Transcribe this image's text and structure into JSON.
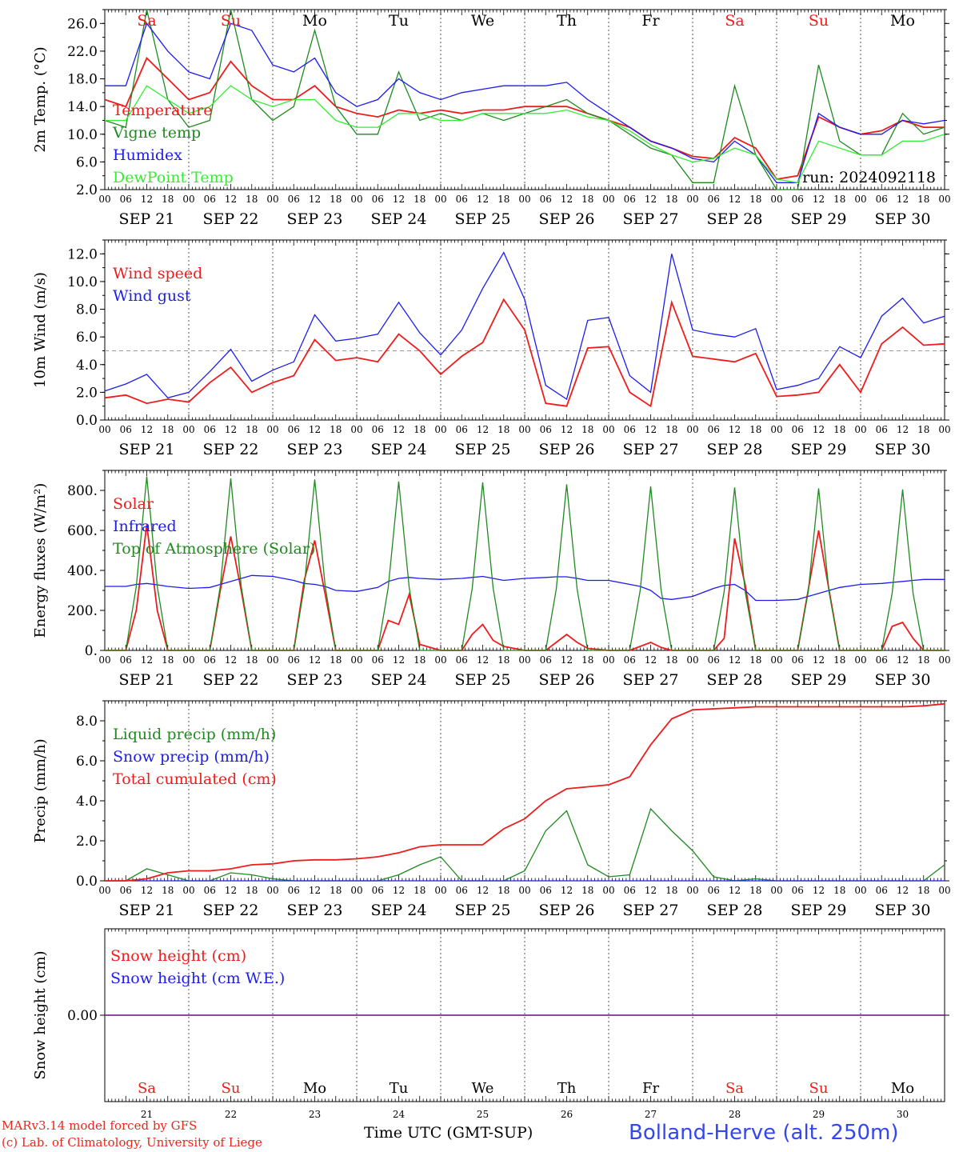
{
  "colors": {
    "red": "#ee1c1c",
    "green": "#1f8a1f",
    "blue": "#1c1cf0",
    "lime": "#33ee33",
    "purple": "#7a2a9a",
    "grid": "#555555",
    "ref": "#999999"
  },
  "footer": {
    "credit_line1": "MARv3.14 model forced by GFS",
    "credit_line2": "(c) Lab. of Climatology, University of Liege",
    "xaxis_title": "Time UTC (GMT-SUP)",
    "station": "Bolland-Herve (alt. 250m)"
  },
  "chart_data": [
    {
      "type": "line",
      "ylabel": "2m Temp. (°C)",
      "ylim": [
        2,
        28
      ],
      "yticks": [
        "2.0",
        "6.0",
        "10.0",
        "14.0",
        "18.0",
        "22.0",
        "26.0"
      ],
      "run_label": "run: 2024092118",
      "days_top": [
        "Sa",
        "Su",
        "Mo",
        "Tu",
        "We",
        "Th",
        "Fr",
        "Sa",
        "Su",
        "Mo"
      ],
      "day_colors": [
        "red",
        "red",
        "black",
        "black",
        "black",
        "black",
        "black",
        "red",
        "red",
        "black"
      ],
      "date_labels": [
        "SEP 21",
        "SEP 22",
        "SEP 23",
        "SEP 24",
        "SEP 25",
        "SEP 26",
        "SEP 27",
        "SEP 28",
        "SEP 29",
        "SEP 30"
      ],
      "hour_labels": [
        "00",
        "06",
        "12",
        "18"
      ],
      "x": [
        0,
        6,
        12,
        18,
        24,
        30,
        36,
        42,
        48,
        54,
        60,
        66,
        72,
        78,
        84,
        90,
        96,
        102,
        108,
        114,
        120,
        126,
        132,
        138,
        144,
        150,
        156,
        162,
        168,
        174,
        180,
        186,
        192,
        198,
        204,
        210,
        216,
        222,
        228,
        234,
        240
      ],
      "series": [
        {
          "name": "Temperature",
          "color": "red",
          "values": [
            15,
            14,
            21,
            18,
            15,
            16,
            20.5,
            17,
            15,
            15,
            17,
            14,
            13,
            12.5,
            13.5,
            13,
            13.5,
            13,
            13.5,
            13.5,
            14,
            14,
            14,
            13,
            12,
            11,
            9,
            8,
            6.8,
            6.5,
            9.5,
            8,
            3.5,
            4,
            12.5,
            11,
            10,
            10.5,
            12,
            11,
            11
          ]
        },
        {
          "name": "Vigne temp",
          "color": "green",
          "values": [
            12,
            11,
            28,
            15,
            11,
            12,
            28,
            15,
            12,
            14,
            25,
            14,
            10,
            10,
            19,
            12,
            13,
            12,
            13,
            12,
            13,
            14,
            15,
            13,
            12,
            10,
            8,
            7,
            3,
            3,
            17,
            7,
            0,
            1,
            20,
            9,
            7,
            7,
            13,
            10,
            11
          ]
        },
        {
          "name": "Humidex",
          "color": "blue",
          "values": [
            17,
            17,
            26,
            22,
            19,
            18,
            26,
            25,
            20,
            19,
            21,
            16,
            14,
            15,
            18,
            16,
            15,
            16,
            16.5,
            17,
            17,
            17,
            17.5,
            15,
            13,
            11,
            9,
            8,
            6.5,
            6,
            9,
            7,
            3,
            3,
            13,
            11,
            10,
            10,
            12,
            11.5,
            12
          ]
        },
        {
          "name": "DewPoint Temp",
          "color": "lime",
          "values": [
            12,
            12,
            17,
            15,
            13,
            14,
            17,
            15,
            14,
            15,
            15,
            12,
            11,
            11,
            13,
            13,
            12,
            12,
            13,
            13,
            13,
            13,
            13.5,
            12.5,
            12,
            10.5,
            8.5,
            7,
            6,
            6.5,
            8,
            7,
            3.5,
            3,
            9,
            8,
            7,
            7,
            9,
            9,
            10
          ]
        }
      ]
    },
    {
      "type": "line",
      "ylabel": "10m Wind (m/s)",
      "ylim": [
        0,
        13
      ],
      "yticks": [
        "0.0",
        "2.0",
        "4.0",
        "6.0",
        "8.0",
        "10.0",
        "12.0"
      ],
      "reference_line": 5,
      "x": [
        0,
        6,
        12,
        18,
        24,
        30,
        36,
        42,
        48,
        54,
        60,
        66,
        72,
        78,
        84,
        90,
        96,
        102,
        108,
        114,
        120,
        126,
        132,
        138,
        144,
        150,
        156,
        162,
        168,
        174,
        180,
        186,
        192,
        198,
        204,
        210,
        216,
        222,
        228,
        234,
        240
      ],
      "series": [
        {
          "name": "Wind speed",
          "color": "red",
          "values": [
            1.6,
            1.8,
            1.2,
            1.5,
            1.3,
            2.7,
            3.8,
            2.0,
            2.7,
            3.2,
            5.8,
            4.3,
            4.5,
            4.2,
            6.2,
            5.0,
            3.3,
            4.6,
            5.6,
            8.7,
            6.5,
            1.2,
            1.0,
            5.2,
            5.3,
            2.0,
            1.0,
            8.5,
            4.6,
            4.4,
            4.2,
            4.8,
            1.7,
            1.8,
            2.0,
            4.0,
            2.0,
            5.5,
            6.7,
            5.4,
            5.5
          ]
        },
        {
          "name": "Wind gust",
          "color": "blue",
          "values": [
            2.1,
            2.6,
            3.3,
            1.6,
            2.0,
            3.5,
            5.1,
            2.8,
            3.6,
            4.2,
            7.6,
            5.7,
            5.9,
            6.2,
            8.5,
            6.3,
            4.7,
            6.5,
            9.5,
            12.1,
            8.7,
            2.5,
            1.5,
            7.2,
            7.4,
            3.2,
            2.0,
            12.0,
            6.5,
            6.2,
            6.0,
            6.6,
            2.2,
            2.5,
            3.0,
            5.3,
            4.5,
            7.5,
            8.8,
            7.0,
            7.5
          ]
        }
      ]
    },
    {
      "type": "line",
      "ylabel": "Energy fluxes (W/m²)",
      "ylim": [
        0,
        900
      ],
      "yticks": [
        "0.",
        "200.",
        "400.",
        "600.",
        "800."
      ],
      "x": [
        0,
        6,
        9,
        12,
        15,
        18,
        24,
        30,
        33,
        36,
        39,
        42,
        48,
        54,
        57,
        60,
        63,
        66,
        72,
        78,
        81,
        84,
        87,
        90,
        96,
        102,
        105,
        108,
        111,
        114,
        120,
        126,
        129,
        132,
        135,
        138,
        144,
        150,
        153,
        156,
        159,
        162,
        168,
        174,
        177,
        180,
        183,
        186,
        192,
        198,
        201,
        204,
        207,
        210,
        216,
        222,
        225,
        228,
        231,
        234,
        240
      ],
      "series": [
        {
          "name": "Solar",
          "color": "red",
          "values": [
            0,
            0,
            200,
            630,
            200,
            0,
            0,
            0,
            300,
            570,
            300,
            0,
            0,
            0,
            350,
            550,
            280,
            0,
            0,
            0,
            150,
            130,
            280,
            30,
            0,
            0,
            80,
            130,
            50,
            20,
            0,
            0,
            40,
            80,
            40,
            10,
            0,
            0,
            20,
            40,
            15,
            0,
            0,
            0,
            60,
            560,
            330,
            0,
            0,
            0,
            300,
            600,
            300,
            0,
            0,
            0,
            120,
            140,
            60,
            0,
            0
          ]
        },
        {
          "name": "Infrared",
          "color": "blue",
          "values": [
            320,
            320,
            330,
            335,
            328,
            320,
            310,
            315,
            330,
            345,
            360,
            375,
            370,
            350,
            335,
            330,
            320,
            300,
            295,
            315,
            345,
            360,
            365,
            360,
            355,
            360,
            365,
            370,
            360,
            350,
            360,
            365,
            368,
            368,
            360,
            350,
            350,
            330,
            320,
            300,
            260,
            255,
            270,
            310,
            325,
            330,
            300,
            250,
            250,
            255,
            270,
            285,
            300,
            315,
            330,
            335,
            340,
            345,
            350,
            355,
            355
          ]
        },
        {
          "name": "Top of Atmosphere (Solar)",
          "color": "green",
          "values": [
            0,
            0,
            320,
            870,
            320,
            0,
            0,
            0,
            320,
            860,
            320,
            0,
            0,
            0,
            320,
            855,
            320,
            0,
            0,
            0,
            315,
            845,
            315,
            0,
            0,
            0,
            310,
            840,
            310,
            0,
            0,
            0,
            305,
            830,
            305,
            0,
            0,
            0,
            300,
            820,
            300,
            0,
            0,
            0,
            295,
            815,
            295,
            0,
            0,
            0,
            290,
            810,
            290,
            0,
            0,
            0,
            285,
            805,
            285,
            0,
            0
          ]
        }
      ]
    },
    {
      "type": "line",
      "ylabel": "Precip (mm/h)",
      "ylim": [
        0,
        9
      ],
      "yticks": [
        "0.0",
        "2.0",
        "4.0",
        "6.0",
        "8.0"
      ],
      "x": [
        0,
        6,
        12,
        18,
        24,
        30,
        36,
        42,
        48,
        54,
        60,
        66,
        72,
        78,
        84,
        90,
        96,
        102,
        108,
        114,
        120,
        126,
        132,
        138,
        144,
        150,
        156,
        162,
        168,
        174,
        180,
        186,
        192,
        198,
        204,
        210,
        216,
        222,
        228,
        234,
        240
      ],
      "series": [
        {
          "name": "Liquid precip (mm/h)",
          "color": "green",
          "values": [
            0,
            0,
            0.6,
            0.3,
            0,
            0,
            0.4,
            0.3,
            0.1,
            0,
            0,
            0,
            0,
            0,
            0.3,
            0.8,
            1.2,
            0,
            0,
            0,
            0.5,
            2.5,
            3.5,
            0.8,
            0.2,
            0.3,
            3.6,
            2.5,
            1.5,
            0.2,
            0,
            0.1,
            0,
            0,
            0,
            0,
            0,
            0,
            0,
            0,
            0.8
          ]
        },
        {
          "name": "Snow precip (mm/h)",
          "color": "blue",
          "values": [
            0,
            0,
            0,
            0,
            0,
            0,
            0,
            0,
            0,
            0,
            0,
            0,
            0,
            0,
            0,
            0,
            0,
            0,
            0,
            0,
            0,
            0,
            0,
            0,
            0,
            0,
            0,
            0,
            0,
            0,
            0,
            0,
            0,
            0,
            0,
            0,
            0,
            0,
            0,
            0,
            0
          ]
        },
        {
          "name": "Total cumulated (cm)",
          "color": "red",
          "values": [
            0,
            0,
            0.1,
            0.4,
            0.5,
            0.5,
            0.6,
            0.8,
            0.85,
            1.0,
            1.05,
            1.05,
            1.1,
            1.2,
            1.4,
            1.7,
            1.8,
            1.8,
            1.8,
            2.6,
            3.1,
            4.0,
            4.6,
            4.7,
            4.8,
            5.2,
            6.8,
            8.1,
            8.55,
            8.6,
            8.65,
            8.7,
            8.7,
            8.7,
            8.7,
            8.7,
            8.7,
            8.7,
            8.7,
            8.75,
            8.85
          ]
        }
      ]
    },
    {
      "type": "line",
      "ylabel": "Snow height (cm)",
      "ylim": [
        -1,
        1
      ],
      "yticks": [
        "0.00"
      ],
      "x": [
        0,
        240
      ],
      "days_bottom": [
        "Sa",
        "Su",
        "Mo",
        "Tu",
        "We",
        "Th",
        "Fr",
        "Sa",
        "Su",
        "Mo"
      ],
      "day_numbers": [
        "21",
        "22",
        "23",
        "24",
        "25",
        "26",
        "27",
        "28",
        "29",
        "30"
      ],
      "series": [
        {
          "name": "Snow height (cm)",
          "color": "red",
          "values": [
            0,
            0
          ]
        },
        {
          "name": "Snow height (cm W.E.)",
          "color": "blue",
          "values": [
            0,
            0
          ]
        }
      ]
    }
  ]
}
